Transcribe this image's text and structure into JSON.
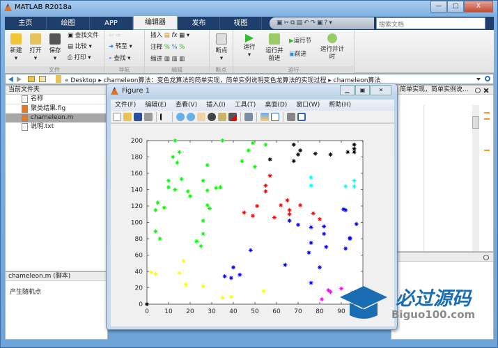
{
  "window": {
    "title": "MATLAB R2018a",
    "min": "—",
    "max": "□",
    "close": "X"
  },
  "tabs": [
    "主页",
    "绘图",
    "APP",
    "编辑器",
    "发布",
    "视图"
  ],
  "active_tab": "编辑器",
  "search": {
    "placeholder": "搜索文档"
  },
  "ribbon": {
    "file": {
      "label": "文件",
      "new": "新建",
      "open": "打开",
      "save": "保存",
      "find_files": "查找文件",
      "compare": "比较",
      "print": "打印"
    },
    "nav": {
      "label": "导航",
      "goto": "转至",
      "find": "查找"
    },
    "edit": {
      "label": "编辑",
      "insert": "插入",
      "comment": "注释",
      "indent": "缩进",
      "fx": "fx"
    },
    "breakpoints": {
      "label": "断点",
      "bp": "断点"
    },
    "run": {
      "label": "运行",
      "run": "运行",
      "run_advance": "运行并前进",
      "run_section": "运行节",
      "advance": "前进",
      "run_time": "运行并计时"
    }
  },
  "address": {
    "path": "« Desktop ▸ chameleon算法：变色龙算法的简单实现，简单实例说明变色龙算法的实现过程 ▸ chameleon算法"
  },
  "current_folder": {
    "title": "当前文件夹",
    "column": "名称",
    "files": [
      {
        "name": "聚类结果.fig"
      },
      {
        "name": "chameleon.m",
        "selected": true
      },
      {
        "name": "说明.txt"
      }
    ],
    "details_title": "chameleon.m  (脚本)",
    "details_text": "产生随机点"
  },
  "editor": {
    "tab_title": "简单实现，简单实例说..."
  },
  "figure": {
    "title": "Figure 1",
    "menu": [
      "文件(F)",
      "编辑(E)",
      "查看(V)",
      "插入(I)",
      "工具(T)",
      "桌面(D)",
      "窗口(W)",
      "帮助(H)"
    ]
  },
  "watermark": {
    "title": "必过源码",
    "url": "Biguo100.com"
  },
  "chart_data": {
    "type": "scatter",
    "marker": "*",
    "xlim": [
      0,
      100
    ],
    "ylim": [
      0,
      200
    ],
    "xticks": [
      0,
      10,
      20,
      30,
      40,
      50,
      60,
      70,
      80,
      90,
      100
    ],
    "yticks": [
      0,
      20,
      40,
      60,
      80,
      100,
      120,
      140,
      160,
      180,
      200
    ],
    "series": [
      {
        "color": "#00ff00",
        "points": [
          [
            13,
            200
          ],
          [
            35,
            200
          ],
          [
            49,
            197
          ],
          [
            55,
            195
          ],
          [
            47,
            188
          ],
          [
            15,
            186
          ],
          [
            12,
            180
          ],
          [
            14,
            173
          ],
          [
            44,
            175
          ],
          [
            28,
            170
          ],
          [
            50,
            168
          ],
          [
            16,
            153
          ],
          [
            10,
            151
          ],
          [
            26,
            151
          ],
          [
            10,
            143
          ],
          [
            13,
            140
          ],
          [
            19,
            138
          ],
          [
            20,
            132
          ],
          [
            28,
            139
          ],
          [
            32,
            142
          ],
          [
            34,
            143
          ],
          [
            5,
            124
          ],
          [
            4,
            115
          ],
          [
            8,
            118
          ],
          [
            28,
            121
          ],
          [
            29,
            117
          ],
          [
            26,
            102
          ],
          [
            4,
            89
          ],
          [
            6,
            80
          ],
          [
            26,
            86
          ],
          [
            23,
            77
          ],
          [
            25,
            71
          ]
        ]
      },
      {
        "color": "#000000",
        "points": [
          [
            0,
            0
          ],
          [
            68,
            195
          ],
          [
            71,
            188
          ],
          [
            70,
            183
          ],
          [
            68,
            175
          ],
          [
            57,
            177
          ],
          [
            78,
            184
          ],
          [
            85,
            183
          ],
          [
            93,
            186
          ],
          [
            96,
            195
          ],
          [
            96,
            190
          ],
          [
            96,
            186
          ]
        ]
      },
      {
        "color": "#ff0000",
        "points": [
          [
            57,
            157
          ],
          [
            55,
            145
          ],
          [
            55,
            138
          ],
          [
            51,
            120
          ],
          [
            45,
            112
          ],
          [
            49,
            108
          ],
          [
            59,
            106
          ],
          [
            65,
            127
          ],
          [
            62,
            121
          ],
          [
            66,
            115
          ],
          [
            66,
            110
          ],
          [
            71,
            121
          ],
          [
            77,
            111
          ],
          [
            80,
            104
          ]
        ]
      },
      {
        "color": "#00ffff",
        "points": [
          [
            76,
            155
          ],
          [
            76,
            145
          ],
          [
            92,
            144
          ],
          [
            96,
            151
          ],
          [
            96,
            144
          ]
        ]
      },
      {
        "color": "#0000ff",
        "points": [
          [
            66,
            102
          ],
          [
            70,
            97
          ],
          [
            76,
            94
          ],
          [
            82,
            95
          ],
          [
            82,
            86
          ],
          [
            91,
            116
          ],
          [
            92,
            115
          ],
          [
            97,
            98
          ],
          [
            94,
            81
          ],
          [
            94,
            80
          ],
          [
            76,
            75
          ],
          [
            83,
            70
          ],
          [
            92,
            68
          ],
          [
            75,
            63
          ],
          [
            48,
            66
          ],
          [
            64,
            48
          ],
          [
            80,
            45
          ],
          [
            40,
            45
          ],
          [
            36,
            34
          ],
          [
            39,
            32
          ],
          [
            43,
            36
          ],
          [
            76,
            26
          ]
        ]
      },
      {
        "color": "#ffff00",
        "points": [
          [
            2,
            39
          ],
          [
            4,
            37
          ],
          [
            17,
            53
          ],
          [
            15,
            38
          ],
          [
            18,
            24
          ],
          [
            26,
            22
          ],
          [
            35,
            8
          ],
          [
            39,
            9
          ],
          [
            54,
            16
          ]
        ]
      },
      {
        "color": "#ff00ff",
        "points": [
          [
            84,
            17
          ],
          [
            85,
            15
          ],
          [
            81,
            6
          ],
          [
            90,
            19
          ],
          [
            95,
            14
          ]
        ]
      }
    ]
  }
}
